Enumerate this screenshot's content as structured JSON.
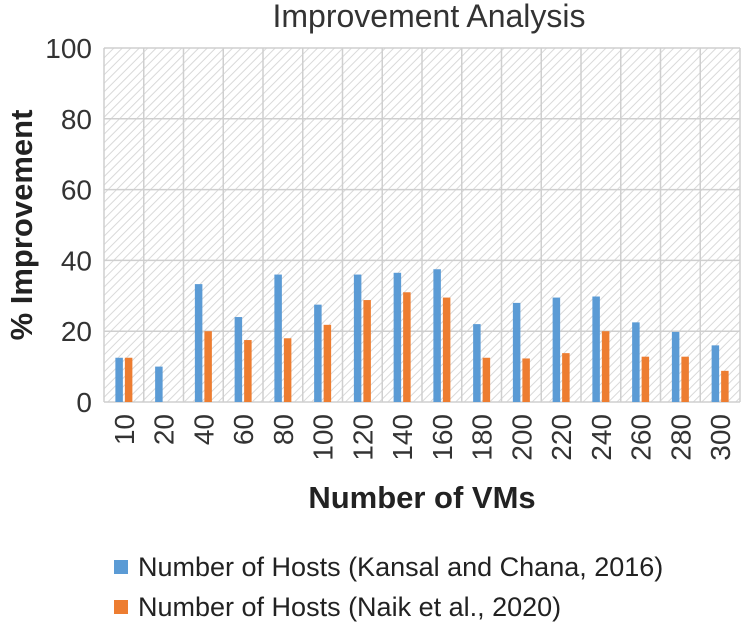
{
  "chart_data": {
    "type": "bar",
    "title": "Improvement Analysis",
    "xlabel": "Number of VMs",
    "ylabel": "% Improvement",
    "ylim": [
      0,
      100
    ],
    "yticks": [
      "0",
      "20",
      "40",
      "60",
      "80",
      "100"
    ],
    "grid": true,
    "legend_position": "bottom",
    "categories": [
      "10",
      "20",
      "40",
      "60",
      "80",
      "100",
      "120",
      "140",
      "160",
      "180",
      "200",
      "220",
      "240",
      "260",
      "280",
      "300"
    ],
    "series": [
      {
        "name": "Number of Hosts (Kansal and Chana, 2016)",
        "color": "#5b9bd5",
        "values": [
          12.5,
          10,
          33.3,
          24,
          36,
          27.5,
          36,
          36.5,
          37.5,
          22,
          28,
          29.5,
          29.8,
          22.5,
          19.8,
          16
        ]
      },
      {
        "name": "Number of Hosts (Naik et al., 2020)",
        "color": "#ed7d31",
        "values": [
          12.5,
          0,
          20,
          17.5,
          18,
          21.8,
          28.8,
          31,
          29.5,
          12.5,
          12.3,
          13.8,
          20,
          12.8,
          12.8,
          8.8
        ]
      }
    ]
  }
}
